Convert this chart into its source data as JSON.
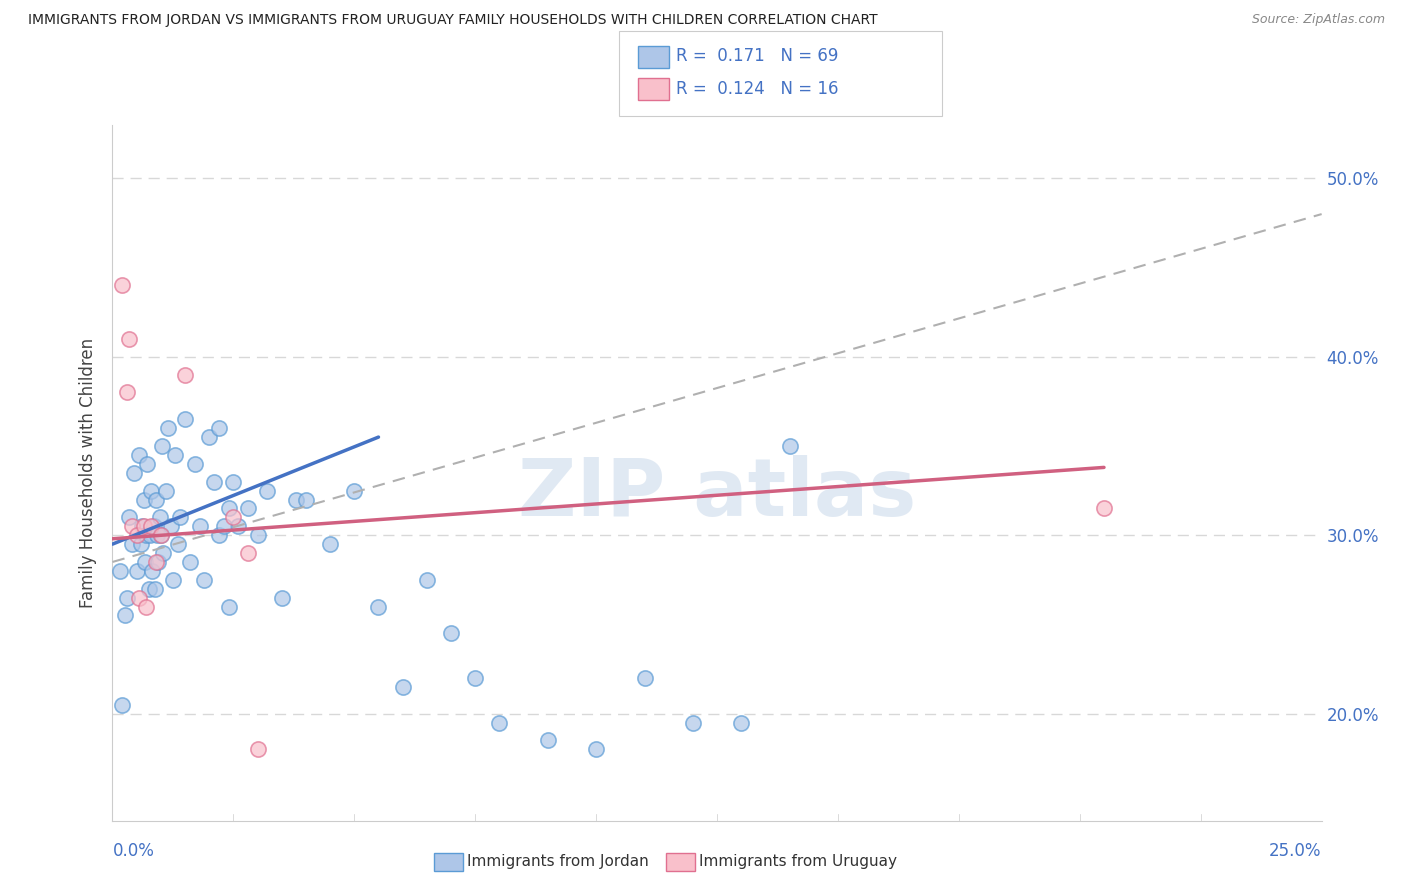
{
  "title": "IMMIGRANTS FROM JORDAN VS IMMIGRANTS FROM URUGUAY FAMILY HOUSEHOLDS WITH CHILDREN CORRELATION CHART",
  "source": "Source: ZipAtlas.com",
  "ylabel": "Family Households with Children",
  "x_min": 0.0,
  "x_max": 25.0,
  "y_min": 14.0,
  "y_max": 53.0,
  "y_ticks": [
    20.0,
    30.0,
    40.0,
    50.0
  ],
  "jordan_color": "#aec6e8",
  "jordan_edge_color": "#5b9bd5",
  "uruguay_color": "#f9c0cb",
  "uruguay_edge_color": "#e07090",
  "legend_R1": "0.171",
  "legend_N1": "69",
  "legend_R2": "0.124",
  "legend_N2": "16",
  "jordan_scatter_x": [
    0.15,
    0.2,
    0.25,
    0.3,
    0.35,
    0.4,
    0.45,
    0.5,
    0.55,
    0.6,
    0.62,
    0.65,
    0.68,
    0.7,
    0.72,
    0.75,
    0.78,
    0.8,
    0.82,
    0.85,
    0.88,
    0.9,
    0.92,
    0.95,
    0.98,
    1.0,
    1.02,
    1.05,
    1.1,
    1.15,
    1.2,
    1.25,
    1.3,
    1.35,
    1.4,
    1.5,
    1.6,
    1.7,
    1.8,
    1.9,
    2.0,
    2.1,
    2.2,
    2.4,
    2.5,
    2.6,
    2.8,
    3.0,
    3.2,
    3.5,
    3.8,
    4.0,
    4.5,
    5.0,
    5.5,
    6.0,
    6.5,
    7.0,
    7.5,
    8.0,
    9.0,
    10.0,
    11.0,
    12.0,
    13.0,
    14.0,
    2.2,
    2.3,
    2.4
  ],
  "jordan_scatter_y": [
    28.0,
    20.5,
    25.5,
    26.5,
    31.0,
    29.5,
    33.5,
    28.0,
    34.5,
    29.5,
    30.5,
    32.0,
    28.5,
    30.0,
    34.0,
    27.0,
    30.0,
    32.5,
    28.0,
    30.5,
    27.0,
    32.0,
    30.0,
    28.5,
    31.0,
    30.0,
    35.0,
    29.0,
    32.5,
    36.0,
    30.5,
    27.5,
    34.5,
    29.5,
    31.0,
    36.5,
    28.5,
    34.0,
    30.5,
    27.5,
    35.5,
    33.0,
    36.0,
    31.5,
    33.0,
    30.5,
    31.5,
    30.0,
    32.5,
    26.5,
    32.0,
    32.0,
    29.5,
    32.5,
    26.0,
    21.5,
    27.5,
    24.5,
    22.0,
    19.5,
    18.5,
    18.0,
    22.0,
    19.5,
    19.5,
    35.0,
    30.0,
    30.5,
    26.0
  ],
  "uruguay_scatter_x": [
    0.2,
    0.3,
    0.35,
    0.4,
    0.5,
    0.55,
    0.65,
    0.7,
    0.8,
    0.9,
    1.0,
    1.5,
    2.5,
    2.8,
    3.0,
    20.5
  ],
  "uruguay_scatter_y": [
    44.0,
    38.0,
    41.0,
    30.5,
    30.0,
    26.5,
    30.5,
    26.0,
    30.5,
    28.5,
    30.0,
    39.0,
    31.0,
    29.0,
    18.0,
    31.5
  ],
  "jordan_trend_x0": 0.0,
  "jordan_trend_y0": 29.5,
  "jordan_trend_x1": 5.5,
  "jordan_trend_y1": 35.5,
  "uruguay_trend_x0": 0.0,
  "uruguay_trend_y0": 29.8,
  "uruguay_trend_x1": 20.5,
  "uruguay_trend_y1": 33.8,
  "dashed_x0": 0.0,
  "dashed_y0": 28.5,
  "dashed_x1": 25.0,
  "dashed_y1": 48.0,
  "watermark_text": "ZIP atlas",
  "background_color": "#ffffff",
  "grid_color": "#d8d8d8",
  "jordan_line_color": "#4472c4",
  "uruguay_line_color": "#d06080",
  "dashed_line_color": "#b0b0b0"
}
